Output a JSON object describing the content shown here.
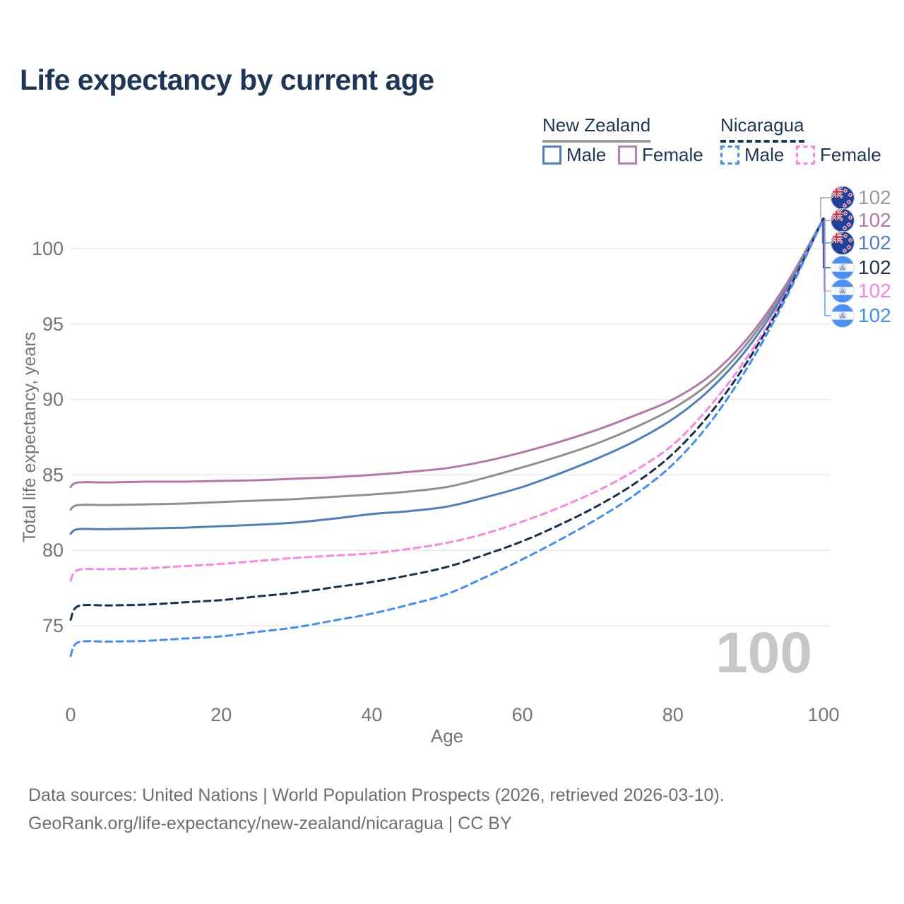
{
  "header": {
    "title": "Life expectancy by current age"
  },
  "colors": {
    "title_text": "#1d3557",
    "axis_text": "#757575",
    "grid": "#e9e9e9",
    "watermark": "#c7c7c7",
    "footer_text": "#6e6e6e"
  },
  "legend": {
    "groups": [
      {
        "name": "New Zealand",
        "line_style": "solid",
        "underline_color": "#9a9a9a",
        "items": [
          {
            "label": "Male",
            "color": "#4d7ebf"
          },
          {
            "label": "Female",
            "color": "#b77fb4"
          }
        ]
      },
      {
        "name": "Nicaragua",
        "line_style": "dashed",
        "underline_color": "#1d3557",
        "items": [
          {
            "label": "Male",
            "color": "#3f8efc"
          },
          {
            "label": "Female",
            "color": "#fc85e6"
          }
        ]
      }
    ]
  },
  "chart_data": {
    "type": "line",
    "title": "Life expectancy by current age",
    "xlabel": "Age",
    "ylabel": "Total life expectancy, years",
    "xlim": [
      0,
      100
    ],
    "ylim": [
      72.5,
      102.5
    ],
    "x_ticks": [
      0,
      20,
      40,
      60,
      80,
      100
    ],
    "y_ticks": [
      75,
      80,
      85,
      90,
      95,
      100
    ],
    "grid": "horizontal",
    "legend_position": "top-right",
    "watermark": "100",
    "x": [
      0,
      1,
      5,
      10,
      15,
      20,
      25,
      30,
      35,
      40,
      45,
      50,
      55,
      60,
      65,
      70,
      75,
      80,
      85,
      90,
      95,
      100
    ],
    "series": [
      {
        "id": "new-zealand-female",
        "name": "New Zealand Female",
        "color": "#b277ad",
        "dash": "solid",
        "marker_index": 1,
        "values": [
          84.2,
          84.5,
          84.5,
          84.55,
          84.55,
          84.6,
          84.65,
          84.75,
          84.85,
          85.0,
          85.2,
          85.45,
          85.9,
          86.5,
          87.2,
          88.0,
          88.95,
          90.0,
          91.6,
          94.1,
          97.6,
          102
        ]
      },
      {
        "id": "new-zealand-total",
        "name": "New Zealand Total",
        "color": "#8f8f8f",
        "dash": "solid",
        "marker_index": 0,
        "values": [
          82.7,
          83.0,
          83.0,
          83.05,
          83.1,
          83.2,
          83.3,
          83.4,
          83.55,
          83.7,
          83.9,
          84.2,
          84.8,
          85.5,
          86.25,
          87.1,
          88.15,
          89.4,
          91.15,
          93.8,
          97.4,
          102
        ]
      },
      {
        "id": "new-zealand-male",
        "name": "New Zealand Male",
        "color": "#4d7ebf",
        "dash": "solid",
        "marker_index": 2,
        "values": [
          81.1,
          81.4,
          81.4,
          81.45,
          81.5,
          81.6,
          81.7,
          81.85,
          82.1,
          82.4,
          82.6,
          82.9,
          83.5,
          84.2,
          85.1,
          86.1,
          87.25,
          88.7,
          90.7,
          93.45,
          97.2,
          102
        ]
      },
      {
        "id": "nicaragua-female",
        "name": "Nicaragua Female",
        "color": "#fc85e6",
        "dash": "dashed",
        "marker_index": 4,
        "values": [
          78.0,
          78.7,
          78.75,
          78.8,
          78.95,
          79.1,
          79.3,
          79.5,
          79.65,
          79.8,
          80.1,
          80.5,
          81.1,
          81.9,
          82.85,
          83.95,
          85.3,
          87.0,
          89.6,
          92.9,
          97.0,
          102
        ]
      },
      {
        "id": "nicaragua-total",
        "name": "Nicaragua Total",
        "color": "#16304e",
        "dash": "dashed",
        "marker_index": 3,
        "values": [
          75.4,
          76.3,
          76.35,
          76.4,
          76.55,
          76.7,
          76.95,
          77.2,
          77.55,
          77.9,
          78.35,
          78.9,
          79.7,
          80.6,
          81.7,
          82.95,
          84.45,
          86.4,
          89.1,
          92.6,
          96.9,
          102
        ]
      },
      {
        "id": "nicaragua-male",
        "name": "Nicaragua Male",
        "color": "#3f8efc",
        "dash": "dashed",
        "marker_index": 5,
        "values": [
          73.0,
          73.9,
          73.95,
          74.0,
          74.15,
          74.3,
          74.6,
          74.9,
          75.35,
          75.8,
          76.4,
          77.1,
          78.2,
          79.4,
          80.7,
          82.1,
          83.7,
          85.7,
          88.5,
          92.2,
          96.7,
          102
        ]
      }
    ],
    "end_markers": [
      {
        "label": "102",
        "series": "New Zealand Total",
        "flag": "new-zealand",
        "color": "#9a9a9a"
      },
      {
        "label": "102",
        "series": "New Zealand Female",
        "flag": "new-zealand",
        "color": "#b277ad"
      },
      {
        "label": "102",
        "series": "New Zealand Male",
        "flag": "new-zealand",
        "color": "#4d7ebf"
      },
      {
        "label": "102",
        "series": "Nicaragua Total",
        "flag": "nicaragua",
        "color": "#1d3249"
      },
      {
        "label": "102",
        "series": "Nicaragua Female",
        "flag": "nicaragua",
        "color": "#fb80e9"
      },
      {
        "label": "102",
        "series": "Nicaragua Male",
        "flag": "nicaragua",
        "color": "#3f8efc"
      }
    ]
  },
  "footer": {
    "line1": "Data sources: United Nations | World Population Prospects (2026, retrieved 2026-03-10).",
    "line2": "GeoRank.org/life-expectancy/new-zealand/nicaragua | CC BY"
  }
}
